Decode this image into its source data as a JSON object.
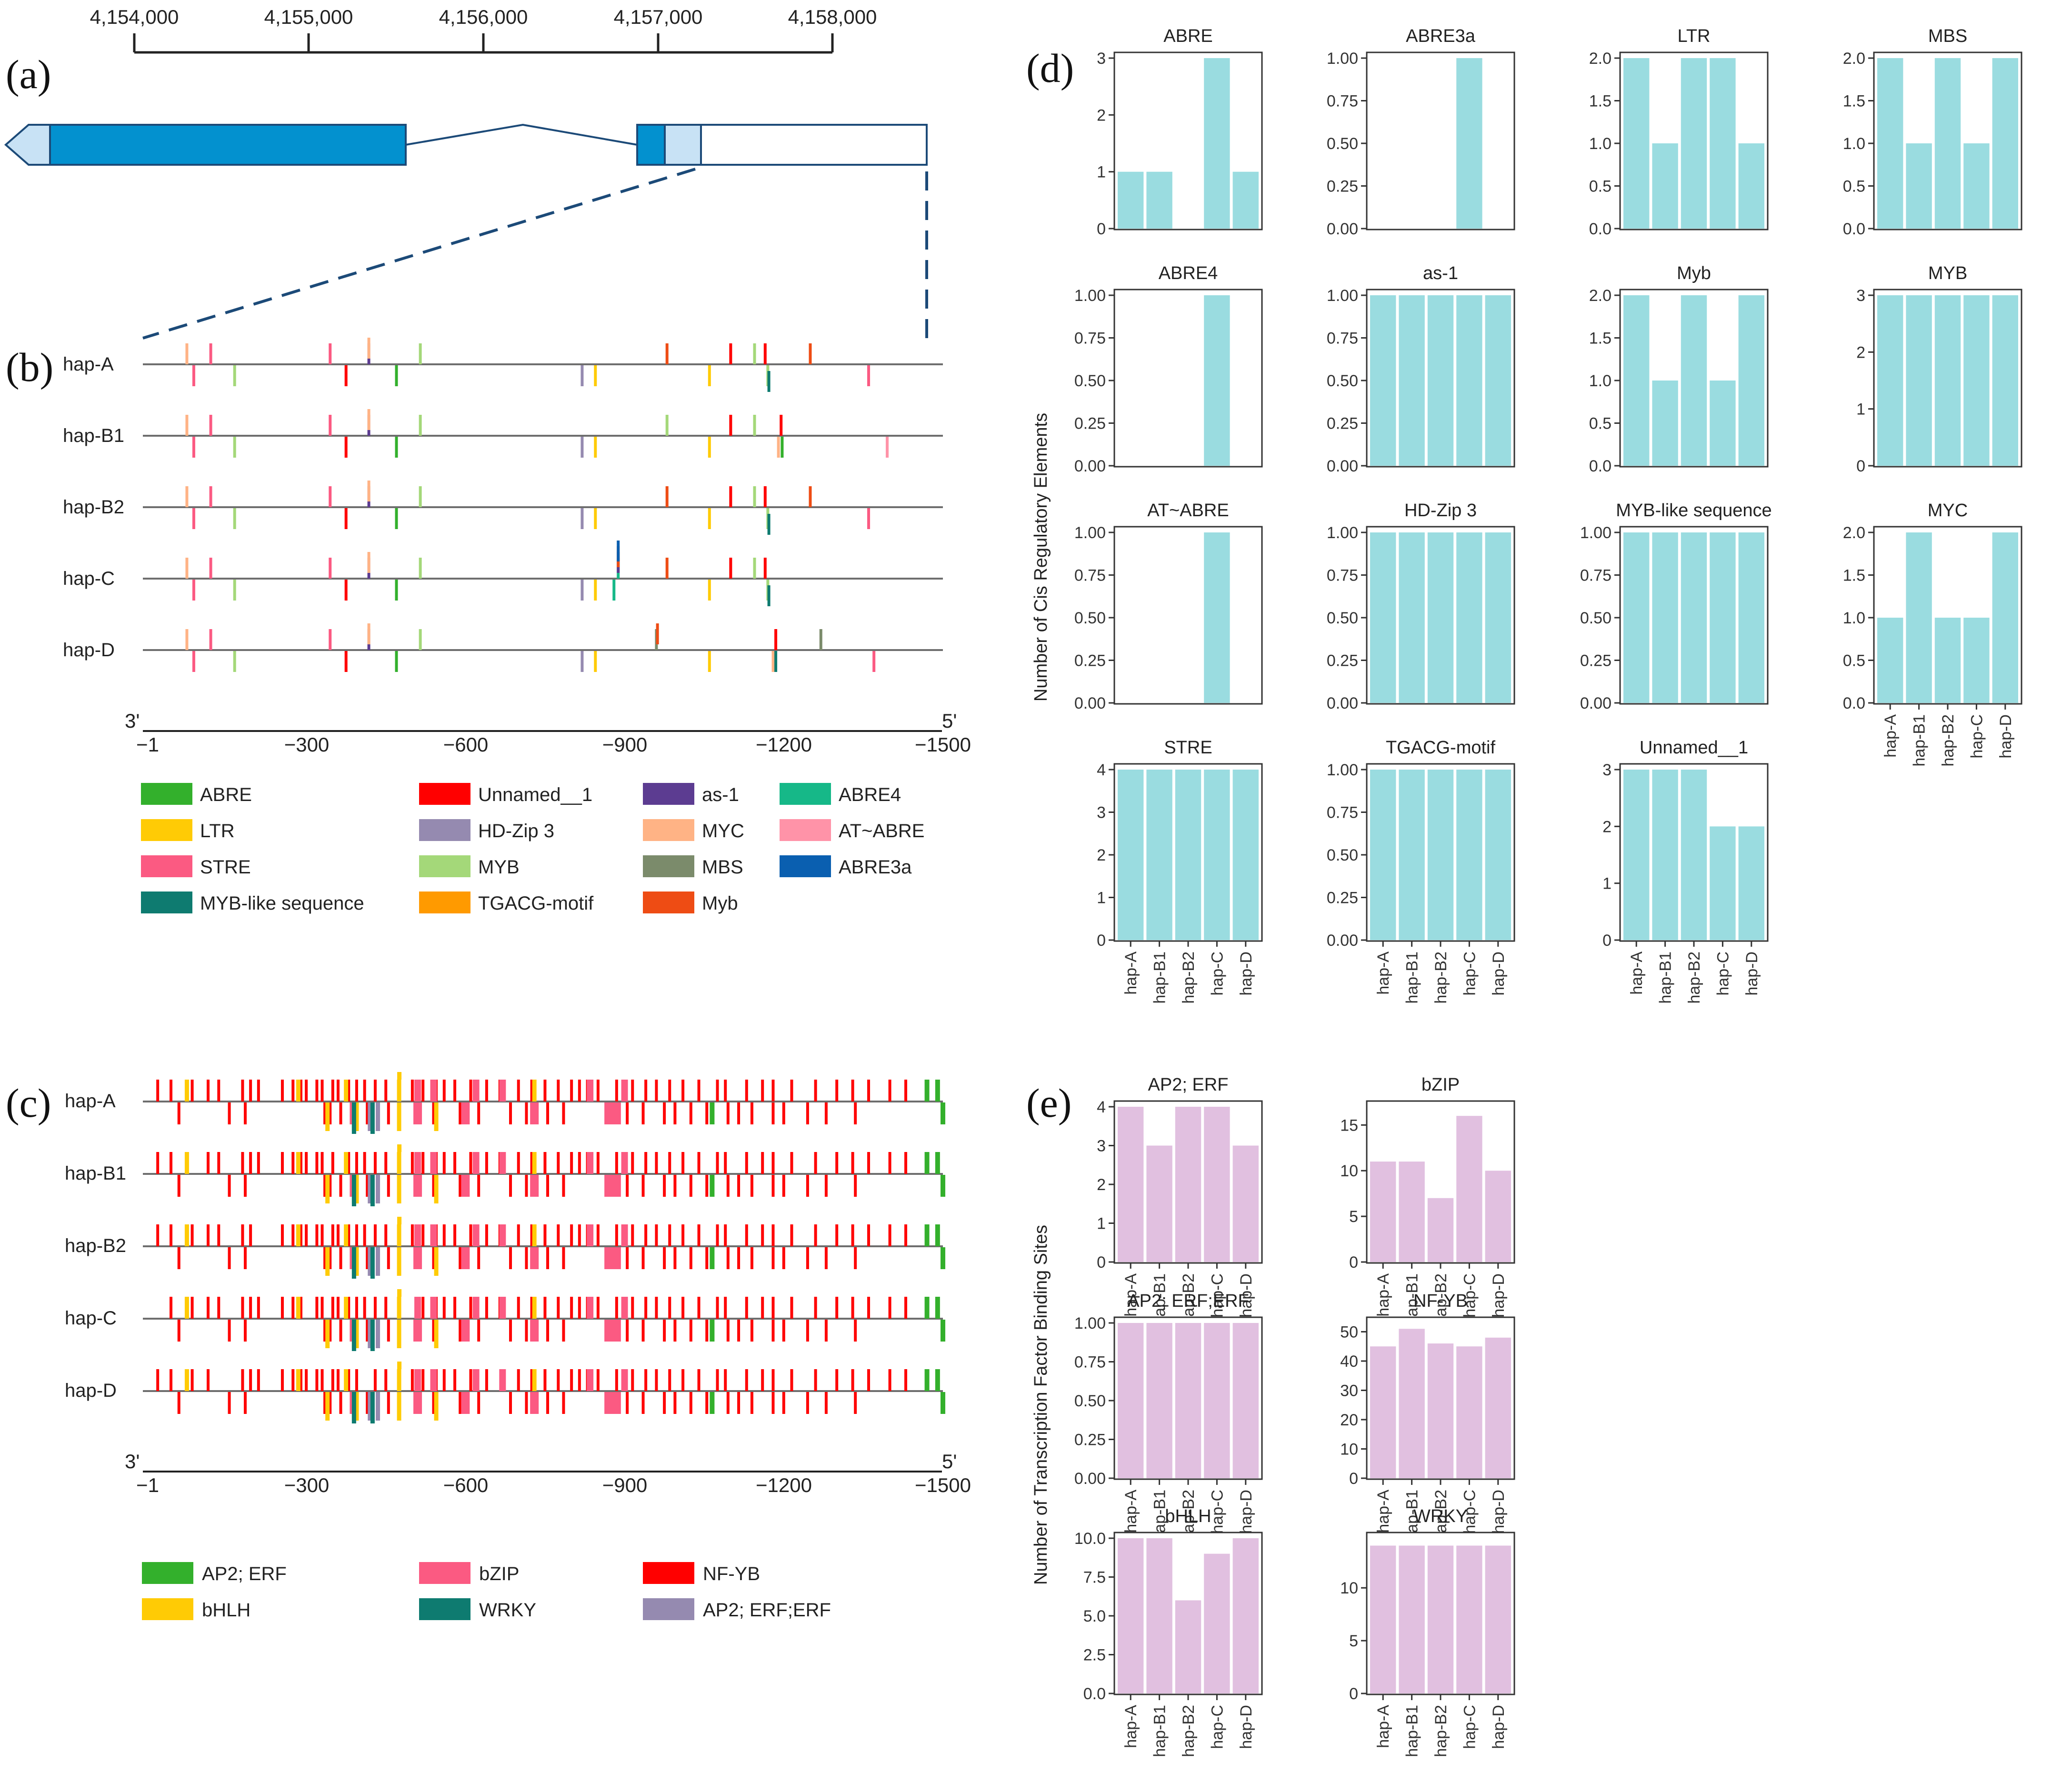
{
  "panels": {
    "a": "(a)",
    "b": "(b)",
    "c": "(c)",
    "d": "(d)",
    "e": "(e)"
  },
  "colors": {
    "ABRE": "#33b02c",
    "LTR": "#ffcb05",
    "STRE": "#fb5a82",
    "MYB-like sequence": "#0e7b70",
    "Unnamed__1": "#ff0000",
    "HD-Zip 3": "#958ab0",
    "MYB": "#a4d879",
    "TGACG-motif": "#ff9a00",
    "as-1": "#5c3c91",
    "MYC": "#ffb385",
    "MBS": "#7b8b6b",
    "Myb": "#ee4c14",
    "ABRE4": "#16b888",
    "AT~ABRE": "#ff93a8",
    "ABRE3a": "#0a5fb0",
    "AP2; ERF": "#33b02c",
    "bHLH": "#ffcb05",
    "bZIP": "#fb5a82",
    "WRKY": "#0e7b70",
    "NF-YB": "#ff0000",
    "AP2; ERF;ERF": "#958ab0",
    "cis_bar": "#9adce0",
    "tf_bar": "#e1c0e0",
    "exon_dark": "#0391cf",
    "utr_light": "#c8e2f5",
    "outline": "#1c4a78"
  },
  "genome_axis": {
    "ticks": [
      "4,154,000",
      "4,155,000",
      "4,156,000",
      "4,157,000",
      "4,158,000"
    ]
  },
  "promoter_axis": {
    "end3": "3'",
    "end5": "5'",
    "ticks": [
      "−1",
      "−300",
      "−600",
      "−900",
      "−1200",
      "−1500"
    ]
  },
  "haplotypes": [
    "hap-A",
    "hap-B1",
    "hap-B2",
    "hap-C",
    "hap-D"
  ],
  "legend_b": [
    [
      "ABRE",
      "Unnamed__1",
      "as-1",
      "ABRE4"
    ],
    [
      "LTR",
      "HD-Zip 3",
      "MYC",
      "AT~ABRE"
    ],
    [
      "STRE",
      "MYB",
      "MBS",
      "ABRE3a"
    ],
    [
      "MYB-like sequence",
      "TGACG-motif",
      "Myb"
    ]
  ],
  "legend_c": [
    [
      "AP2; ERF",
      "bZIP",
      "NF-YB"
    ],
    [
      "bHLH",
      "WRKY",
      "AP2; ERF;ERF"
    ]
  ],
  "sites_b": {
    "hap-A": [
      [
        75,
        1,
        "MYC"
      ],
      [
        88,
        -1,
        "STRE"
      ],
      [
        120,
        1,
        "STRE"
      ],
      [
        165,
        -1,
        "MYB"
      ],
      [
        345,
        1,
        "STRE"
      ],
      [
        375,
        -1,
        "Unnamed__1"
      ],
      [
        418,
        1,
        "as-1"
      ],
      [
        418,
        1,
        "MYC"
      ],
      [
        470,
        -1,
        "ABRE"
      ],
      [
        515,
        1,
        "MYB"
      ],
      [
        820,
        -1,
        "HD-Zip 3"
      ],
      [
        845,
        -1,
        "LTR"
      ],
      [
        980,
        1,
        "Myb"
      ],
      [
        1060,
        -1,
        "LTR"
      ],
      [
        1100,
        1,
        "Unnamed__1"
      ],
      [
        1145,
        1,
        "MYB"
      ],
      [
        1165,
        1,
        "Unnamed__1"
      ],
      [
        1170,
        -1,
        "MYB"
      ],
      [
        1172,
        -1,
        "MYB-like sequence"
      ],
      [
        1250,
        1,
        "Myb"
      ],
      [
        1360,
        -1,
        "STRE"
      ]
    ],
    "hap-B1": [
      [
        75,
        1,
        "MYC"
      ],
      [
        88,
        -1,
        "STRE"
      ],
      [
        120,
        1,
        "STRE"
      ],
      [
        165,
        -1,
        "MYB"
      ],
      [
        345,
        1,
        "STRE"
      ],
      [
        375,
        -1,
        "Unnamed__1"
      ],
      [
        418,
        1,
        "as-1"
      ],
      [
        418,
        1,
        "MYC"
      ],
      [
        470,
        -1,
        "ABRE"
      ],
      [
        515,
        1,
        "MYB"
      ],
      [
        820,
        -1,
        "HD-Zip 3"
      ],
      [
        845,
        -1,
        "LTR"
      ],
      [
        980,
        1,
        "MYB"
      ],
      [
        1060,
        -1,
        "LTR"
      ],
      [
        1100,
        1,
        "Unnamed__1"
      ],
      [
        1145,
        1,
        "MYB"
      ],
      [
        1195,
        1,
        "Unnamed__1"
      ],
      [
        1190,
        -1,
        "MYC"
      ],
      [
        1197,
        -1,
        "ABRE"
      ],
      [
        1395,
        -1,
        "AT~ABRE"
      ]
    ],
    "hap-B2": [
      [
        75,
        1,
        "MYC"
      ],
      [
        88,
        -1,
        "STRE"
      ],
      [
        120,
        1,
        "STRE"
      ],
      [
        165,
        -1,
        "MYB"
      ],
      [
        345,
        1,
        "STRE"
      ],
      [
        375,
        -1,
        "Unnamed__1"
      ],
      [
        418,
        1,
        "as-1"
      ],
      [
        418,
        1,
        "MYC"
      ],
      [
        470,
        -1,
        "ABRE"
      ],
      [
        515,
        1,
        "MYB"
      ],
      [
        820,
        -1,
        "HD-Zip 3"
      ],
      [
        845,
        -1,
        "LTR"
      ],
      [
        980,
        1,
        "Myb"
      ],
      [
        1060,
        -1,
        "LTR"
      ],
      [
        1100,
        1,
        "Unnamed__1"
      ],
      [
        1145,
        1,
        "MYB"
      ],
      [
        1165,
        1,
        "Unnamed__1"
      ],
      [
        1170,
        -1,
        "MYB"
      ],
      [
        1172,
        -1,
        "MYB-like sequence"
      ],
      [
        1250,
        1,
        "Myb"
      ],
      [
        1360,
        -1,
        "STRE"
      ]
    ],
    "hap-C": [
      [
        75,
        1,
        "MYC"
      ],
      [
        88,
        -1,
        "STRE"
      ],
      [
        120,
        1,
        "STRE"
      ],
      [
        165,
        -1,
        "MYB"
      ],
      [
        345,
        1,
        "STRE"
      ],
      [
        375,
        -1,
        "Unnamed__1"
      ],
      [
        418,
        1,
        "as-1"
      ],
      [
        418,
        1,
        "MYC"
      ],
      [
        470,
        -1,
        "ABRE"
      ],
      [
        515,
        1,
        "MYB"
      ],
      [
        820,
        -1,
        "HD-Zip 3"
      ],
      [
        845,
        -1,
        "LTR"
      ],
      [
        888,
        1,
        "ABRE4"
      ],
      [
        888,
        1,
        "as-1"
      ],
      [
        888,
        1,
        "Myb"
      ],
      [
        888,
        1,
        "ABRE3a"
      ],
      [
        880,
        -1,
        "ABRE4"
      ],
      [
        980,
        1,
        "Myb"
      ],
      [
        1060,
        -1,
        "LTR"
      ],
      [
        1100,
        1,
        "Unnamed__1"
      ],
      [
        1145,
        1,
        "MYB"
      ],
      [
        1165,
        1,
        "Unnamed__1"
      ],
      [
        1170,
        -1,
        "MYB"
      ],
      [
        1172,
        -1,
        "MYB-like sequence"
      ]
    ],
    "hap-D": [
      [
        75,
        1,
        "MYC"
      ],
      [
        88,
        -1,
        "STRE"
      ],
      [
        120,
        1,
        "STRE"
      ],
      [
        165,
        -1,
        "MYB"
      ],
      [
        345,
        1,
        "STRE"
      ],
      [
        375,
        -1,
        "Unnamed__1"
      ],
      [
        418,
        1,
        "as-1"
      ],
      [
        418,
        1,
        "MYC"
      ],
      [
        470,
        -1,
        "ABRE"
      ],
      [
        515,
        1,
        "MYB"
      ],
      [
        820,
        -1,
        "HD-Zip 3"
      ],
      [
        845,
        -1,
        "LTR"
      ],
      [
        960,
        1,
        "MBS"
      ],
      [
        962,
        1,
        "Myb"
      ],
      [
        1060,
        -1,
        "LTR"
      ],
      [
        1185,
        1,
        "Unnamed__1"
      ],
      [
        1180,
        -1,
        "MYC"
      ],
      [
        1185,
        -1,
        "MYB-like sequence"
      ],
      [
        1270,
        1,
        "MBS"
      ],
      [
        1370,
        -1,
        "STRE"
      ]
    ]
  },
  "sites_c": {
    "common_up_red": [
      20,
      45,
      85,
      115,
      135,
      180,
      195,
      210,
      255,
      275,
      290,
      300,
      320,
      330,
      350,
      360,
      380,
      395,
      410,
      430,
      450,
      475,
      500,
      520,
      545,
      560,
      580,
      610,
      640,
      665,
      700,
      725,
      750,
      775,
      800,
      815,
      830,
      850,
      885,
      915,
      940,
      960,
      985,
      1010,
      1040,
      1075,
      1090,
      1130,
      1160,
      1180,
      1215,
      1260,
      1300,
      1330,
      1360,
      1400,
      1430
    ],
    "common_down_red": [
      60,
      155,
      185,
      335,
      345,
      365,
      395,
      415,
      455,
      540,
      590,
      625,
      685,
      715,
      755,
      785,
      870,
      905,
      935,
      975,
      995,
      1025,
      1055,
      1095,
      1115,
      1140,
      1180,
      1200,
      1245,
      1280,
      1335
    ],
    "up_yellow": [
      75,
      285,
      375,
      475,
      730
    ],
    "up_pink": [
      510,
      540,
      620,
      670,
      835,
      900
    ],
    "down_pink": [
      390,
      510,
      600,
      730,
      870,
      885
    ],
    "down_yellow": [
      340,
      390,
      395,
      475,
      545
    ],
    "down_teal": [
      390,
      425
    ],
    "down_gray": [
      420,
      435
    ],
    "up_green": [
      1470,
      1490
    ],
    "down_green": [
      1065,
      1500
    ]
  },
  "chart_data": [
    {
      "type": "bar",
      "title": "ABRE",
      "categories": [
        "hap-A",
        "hap-B1",
        "hap-B2",
        "hap-C",
        "hap-D"
      ],
      "values": [
        1,
        1,
        0,
        3,
        1
      ],
      "ylim": [
        0,
        3
      ],
      "ticks": [
        "0",
        "1",
        "2",
        "3"
      ]
    },
    {
      "type": "bar",
      "title": "ABRE3a",
      "categories": [
        "hap-A",
        "hap-B1",
        "hap-B2",
        "hap-C",
        "hap-D"
      ],
      "values": [
        0,
        0,
        0,
        1,
        0
      ],
      "ylim": [
        0,
        1
      ],
      "ticks": [
        "0.00",
        "0.25",
        "0.50",
        "0.75",
        "1.00"
      ]
    },
    {
      "type": "bar",
      "title": "LTR",
      "categories": [
        "hap-A",
        "hap-B1",
        "hap-B2",
        "hap-C",
        "hap-D"
      ],
      "values": [
        2,
        1,
        2,
        2,
        1
      ],
      "ylim": [
        0,
        2
      ],
      "ticks": [
        "0.0",
        "0.5",
        "1.0",
        "1.5",
        "2.0"
      ]
    },
    {
      "type": "bar",
      "title": "MBS",
      "categories": [
        "hap-A",
        "hap-B1",
        "hap-B2",
        "hap-C",
        "hap-D"
      ],
      "values": [
        2,
        1,
        2,
        1,
        2
      ],
      "ylim": [
        0,
        2
      ],
      "ticks": [
        "0.0",
        "0.5",
        "1.0",
        "1.5",
        "2.0"
      ]
    },
    {
      "type": "bar",
      "title": "ABRE4",
      "categories": [
        "hap-A",
        "hap-B1",
        "hap-B2",
        "hap-C",
        "hap-D"
      ],
      "values": [
        0,
        0,
        0,
        1,
        0
      ],
      "ylim": [
        0,
        1
      ],
      "ticks": [
        "0.00",
        "0.25",
        "0.50",
        "0.75",
        "1.00"
      ]
    },
    {
      "type": "bar",
      "title": "as-1",
      "categories": [
        "hap-A",
        "hap-B1",
        "hap-B2",
        "hap-C",
        "hap-D"
      ],
      "values": [
        1,
        1,
        1,
        1,
        1
      ],
      "ylim": [
        0,
        1
      ],
      "ticks": [
        "0.00",
        "0.25",
        "0.50",
        "0.75",
        "1.00"
      ]
    },
    {
      "type": "bar",
      "title": "Myb",
      "categories": [
        "hap-A",
        "hap-B1",
        "hap-B2",
        "hap-C",
        "hap-D"
      ],
      "values": [
        2,
        1,
        2,
        1,
        2
      ],
      "ylim": [
        0,
        2
      ],
      "ticks": [
        "0.0",
        "0.5",
        "1.0",
        "1.5",
        "2.0"
      ]
    },
    {
      "type": "bar",
      "title": "MYB",
      "categories": [
        "hap-A",
        "hap-B1",
        "hap-B2",
        "hap-C",
        "hap-D"
      ],
      "values": [
        3,
        3,
        3,
        3,
        3
      ],
      "ylim": [
        0,
        3
      ],
      "ticks": [
        "0",
        "1",
        "2",
        "3"
      ]
    },
    {
      "type": "bar",
      "title": "AT~ABRE",
      "categories": [
        "hap-A",
        "hap-B1",
        "hap-B2",
        "hap-C",
        "hap-D"
      ],
      "values": [
        0,
        0,
        0,
        1,
        0
      ],
      "ylim": [
        0,
        1
      ],
      "ticks": [
        "0.00",
        "0.25",
        "0.50",
        "0.75",
        "1.00"
      ]
    },
    {
      "type": "bar",
      "title": "HD-Zip 3",
      "categories": [
        "hap-A",
        "hap-B1",
        "hap-B2",
        "hap-C",
        "hap-D"
      ],
      "values": [
        1,
        1,
        1,
        1,
        1
      ],
      "ylim": [
        0,
        1
      ],
      "ticks": [
        "0.00",
        "0.25",
        "0.50",
        "0.75",
        "1.00"
      ]
    },
    {
      "type": "bar",
      "title": "MYB-like sequence",
      "categories": [
        "hap-A",
        "hap-B1",
        "hap-B2",
        "hap-C",
        "hap-D"
      ],
      "values": [
        1,
        1,
        1,
        1,
        1
      ],
      "ylim": [
        0,
        1
      ],
      "ticks": [
        "0.00",
        "0.25",
        "0.50",
        "0.75",
        "1.00"
      ]
    },
    {
      "type": "bar",
      "title": "MYC",
      "categories": [
        "hap-A",
        "hap-B1",
        "hap-B2",
        "hap-C",
        "hap-D"
      ],
      "values": [
        1,
        2,
        1,
        1,
        2
      ],
      "ylim": [
        0,
        2
      ],
      "ticks": [
        "0.0",
        "0.5",
        "1.0",
        "1.5",
        "2.0"
      ]
    },
    {
      "type": "bar",
      "title": "STRE",
      "categories": [
        "hap-A",
        "hap-B1",
        "hap-B2",
        "hap-C",
        "hap-D"
      ],
      "values": [
        4,
        4,
        4,
        4,
        4
      ],
      "ylim": [
        0,
        4
      ],
      "ticks": [
        "0",
        "1",
        "2",
        "3",
        "4"
      ]
    },
    {
      "type": "bar",
      "title": "TGACG-motif",
      "categories": [
        "hap-A",
        "hap-B1",
        "hap-B2",
        "hap-C",
        "hap-D"
      ],
      "values": [
        1,
        1,
        1,
        1,
        1
      ],
      "ylim": [
        0,
        1
      ],
      "ticks": [
        "0.00",
        "0.25",
        "0.50",
        "0.75",
        "1.00"
      ]
    },
    {
      "type": "bar",
      "title": "Unnamed__1",
      "categories": [
        "hap-A",
        "hap-B1",
        "hap-B2",
        "hap-C",
        "hap-D"
      ],
      "values": [
        3,
        3,
        3,
        2,
        2
      ],
      "ylim": [
        0,
        3
      ],
      "ticks": [
        "0",
        "1",
        "2",
        "3"
      ]
    },
    {
      "type": "bar",
      "title": "AP2; ERF",
      "categories": [
        "hap-A",
        "hap-B1",
        "hap-B2",
        "hap-C",
        "hap-D"
      ],
      "values": [
        4,
        3,
        4,
        4,
        3
      ],
      "ylim": [
        0,
        4
      ],
      "ticks": [
        "0",
        "1",
        "2",
        "3",
        "4"
      ]
    },
    {
      "type": "bar",
      "title": "bZIP",
      "categories": [
        "hap-A",
        "hap-B1",
        "hap-B2",
        "hap-C",
        "hap-D"
      ],
      "values": [
        11,
        11,
        7,
        16,
        10
      ],
      "ylim": [
        0,
        17
      ],
      "ticks": [
        "0",
        "5",
        "10",
        "15"
      ]
    },
    {
      "type": "bar",
      "title": "AP2; ERF;ERF",
      "categories": [
        "hap-A",
        "hap-B1",
        "hap-B2",
        "hap-C",
        "hap-D"
      ],
      "values": [
        1,
        1,
        1,
        1,
        1
      ],
      "ylim": [
        0,
        1
      ],
      "ticks": [
        "0.00",
        "0.25",
        "0.50",
        "0.75",
        "1.00"
      ]
    },
    {
      "type": "bar",
      "title": "NF-YB",
      "categories": [
        "hap-A",
        "hap-B1",
        "hap-B2",
        "hap-C",
        "hap-D"
      ],
      "values": [
        45,
        51,
        46,
        45,
        48
      ],
      "ylim": [
        0,
        53
      ],
      "ticks": [
        "0",
        "10",
        "20",
        "30",
        "40",
        "50"
      ]
    },
    {
      "type": "bar",
      "title": "bHLH",
      "categories": [
        "hap-A",
        "hap-B1",
        "hap-B2",
        "hap-C",
        "hap-D"
      ],
      "values": [
        10,
        10,
        6,
        9,
        10
      ],
      "ylim": [
        0,
        10
      ],
      "ticks": [
        "0.0",
        "2.5",
        "5.0",
        "7.5",
        "10.0"
      ]
    },
    {
      "type": "bar",
      "title": "WRKY",
      "categories": [
        "hap-A",
        "hap-B1",
        "hap-B2",
        "hap-C",
        "hap-D"
      ],
      "values": [
        14,
        14,
        14,
        14,
        14
      ],
      "ylim": [
        0,
        14.7
      ],
      "ticks": [
        "0",
        "5",
        "10"
      ]
    }
  ],
  "ylabel_d": "Number of Cis Regulatory Elements",
  "ylabel_e": "Number of Transcription Factor Binding Sites"
}
